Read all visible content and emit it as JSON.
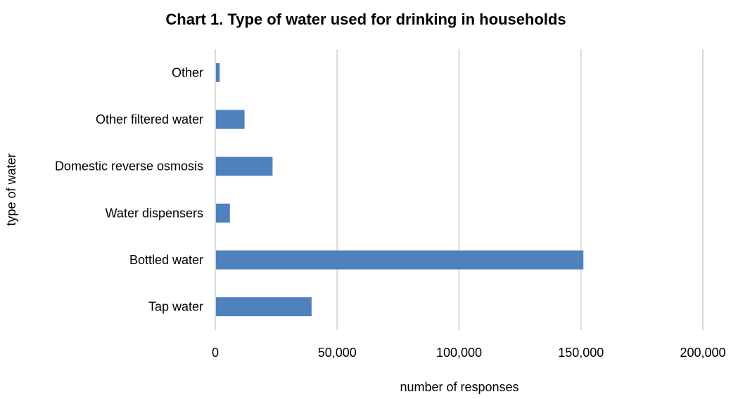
{
  "chart_data": {
    "type": "bar",
    "orientation": "horizontal",
    "title": "Chart 1. Type of water used for drinking in households",
    "xlabel": "number of responses",
    "ylabel": "type of water",
    "categories": [
      "Tap water",
      "Bottled water",
      "Water dispensers",
      "Domestic reverse osmosis",
      "Other filtered water",
      "Other"
    ],
    "values": [
      39500,
      151000,
      6000,
      23500,
      12000,
      1800
    ],
    "xlim": [
      0,
      200000
    ],
    "xticks": [
      0,
      50000,
      100000,
      150000,
      200000
    ],
    "xtick_labels": [
      "0",
      "50,000",
      "100,000",
      "150,000",
      "200,000"
    ],
    "grid": "vertical",
    "legend": "none",
    "bar_color": "#4f81bd",
    "grid_color": "#d9d9d9"
  }
}
